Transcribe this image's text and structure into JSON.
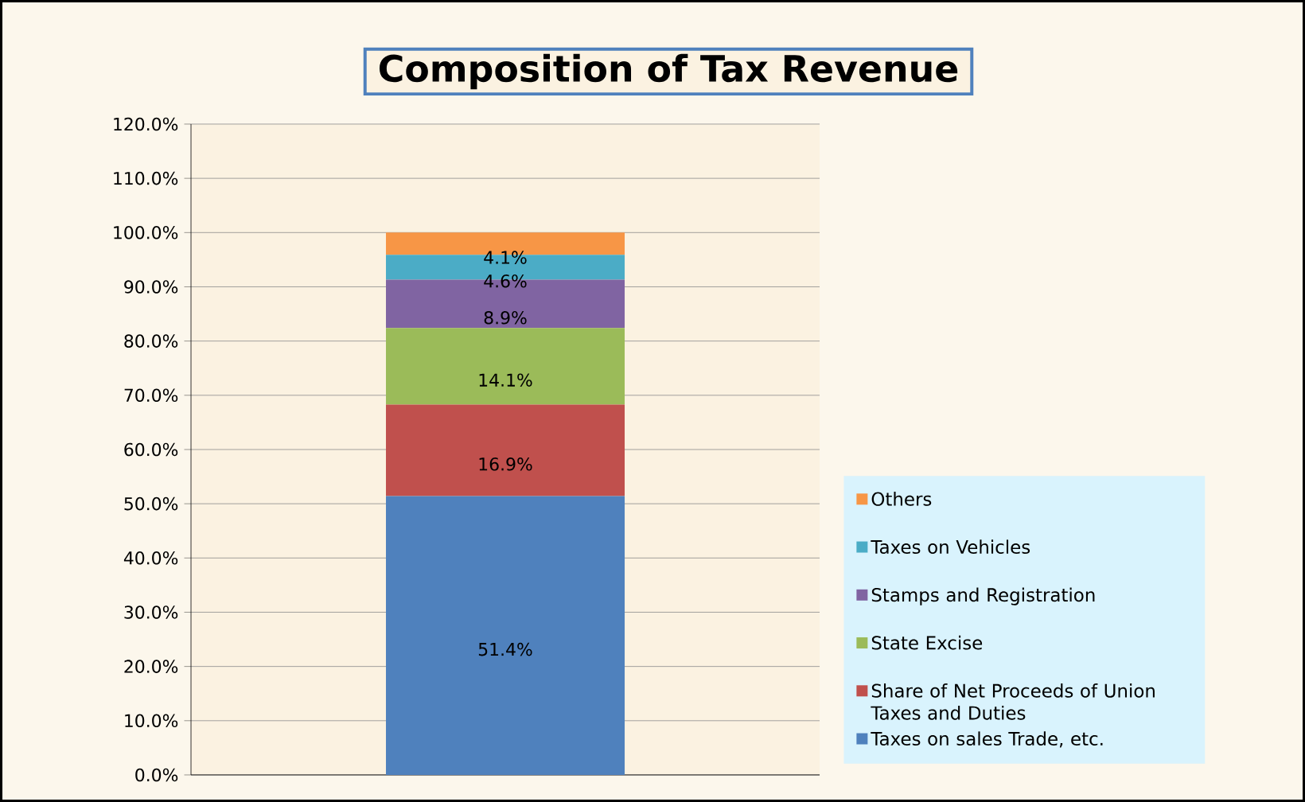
{
  "chart_data": {
    "type": "bar",
    "title": "Composition of Tax Revenue",
    "stacked": true,
    "categories": [
      null
    ],
    "series": [
      {
        "name": "Taxes on sales Trade, etc.",
        "color": "#4f81bd",
        "values": [
          51.4
        ],
        "value_labels": [
          "51.4%"
        ]
      },
      {
        "name": "Share of Net Proceeds of Union Taxes and Duties",
        "color": "#c0504d",
        "values": [
          16.9
        ],
        "value_labels": [
          "16.9%"
        ]
      },
      {
        "name": "State Excise",
        "color": "#9bbb59",
        "values": [
          14.1
        ],
        "value_labels": [
          "14.1%"
        ]
      },
      {
        "name": "Stamps and Registration",
        "color": "#8064a2",
        "values": [
          8.9
        ],
        "value_labels": [
          "8.9%"
        ]
      },
      {
        "name": "Taxes on Vehicles",
        "color": "#4bacc6",
        "values": [
          4.6
        ],
        "value_labels": [
          "4.6%"
        ]
      },
      {
        "name": "Others",
        "color": "#f79646",
        "values": [
          4.1
        ],
        "value_labels": [
          "4.1%"
        ]
      }
    ],
    "ylim": [
      0,
      120
    ],
    "yticks": [
      {
        "value": 0,
        "label": "0.0%"
      },
      {
        "value": 10,
        "label": "10.0%"
      },
      {
        "value": 20,
        "label": "20.0%"
      },
      {
        "value": 30,
        "label": "30.0%"
      },
      {
        "value": 40,
        "label": "40.0%"
      },
      {
        "value": 50,
        "label": "50.0%"
      },
      {
        "value": 60,
        "label": "60.0%"
      },
      {
        "value": 70,
        "label": "70.0%"
      },
      {
        "value": 80,
        "label": "80.0%"
      },
      {
        "value": 90,
        "label": "90.0%"
      },
      {
        "value": 100,
        "label": "100.0%"
      },
      {
        "value": 110,
        "label": "110.0%"
      },
      {
        "value": 120,
        "label": "120.0%"
      }
    ],
    "grid": "y",
    "legend": "right"
  }
}
